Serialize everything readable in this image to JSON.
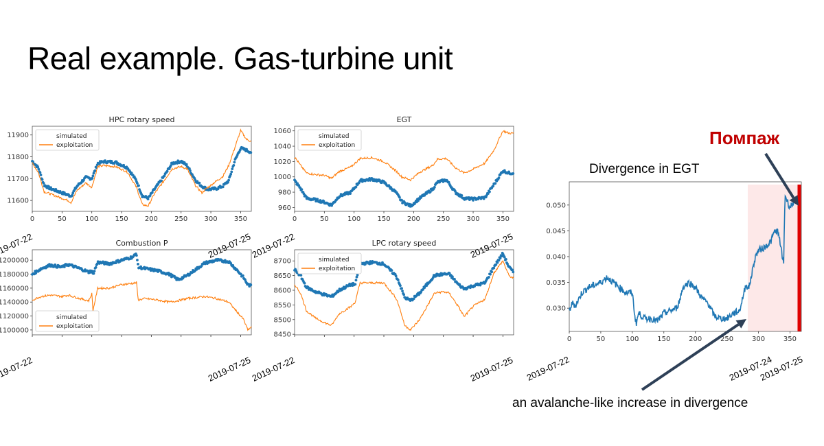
{
  "slide": {
    "title": "Real example. Gas-turbine unit",
    "divergence_title": "Divergence in  EGT",
    "surge_label": "Помпаж",
    "annotation": "an avalanche-like increase in divergence"
  },
  "legend": {
    "simulated": "simulated",
    "exploitation": "exploitation"
  },
  "colors": {
    "simulated": "#1f77b4",
    "exploitation": "#ff7f0e",
    "surge": "#e00000",
    "highlight": "#fde8e8",
    "arrow": "#2e4057",
    "surge_text": "#c00000"
  },
  "chart_data": [
    {
      "type": "line",
      "title": "HPC rotary speed",
      "x_ticks": [
        0,
        50,
        100,
        150,
        200,
        250,
        300,
        350
      ],
      "y_ticks": [
        11600,
        11700,
        11800,
        11900
      ],
      "ylim": [
        11550,
        11940
      ],
      "xlim": [
        0,
        368
      ],
      "date_labels": [
        "2019-07-22",
        "2019-07-25"
      ],
      "legend_position": "upper left",
      "x": [
        0,
        10,
        20,
        30,
        40,
        50,
        60,
        65,
        75,
        90,
        100,
        110,
        120,
        140,
        160,
        175,
        185,
        195,
        205,
        220,
        235,
        250,
        260,
        275,
        285,
        295,
        310,
        320,
        330,
        340,
        350,
        360,
        368
      ],
      "series": [
        {
          "name": "simulated",
          "style": "dots",
          "values": [
            11780,
            11750,
            11670,
            11655,
            11645,
            11635,
            11625,
            11620,
            11665,
            11705,
            11700,
            11770,
            11778,
            11775,
            11750,
            11690,
            11620,
            11610,
            11650,
            11705,
            11770,
            11780,
            11760,
            11690,
            11665,
            11650,
            11655,
            11665,
            11690,
            11780,
            11840,
            11830,
            11820
          ]
        },
        {
          "name": "exploitation",
          "style": "line",
          "values": [
            11770,
            11730,
            11640,
            11630,
            11620,
            11610,
            11600,
            11590,
            11645,
            11680,
            11660,
            11755,
            11760,
            11755,
            11730,
            11660,
            11580,
            11575,
            11630,
            11685,
            11745,
            11755,
            11745,
            11665,
            11635,
            11660,
            11690,
            11710,
            11760,
            11840,
            11920,
            11880,
            11870
          ]
        }
      ]
    },
    {
      "type": "line",
      "title": "EGT",
      "x_ticks": [
        0,
        50,
        100,
        150,
        200,
        250,
        300,
        350
      ],
      "y_ticks": [
        960,
        980,
        1000,
        1020,
        1040,
        1060
      ],
      "ylim": [
        955,
        1066
      ],
      "xlim": [
        0,
        368
      ],
      "date_labels": [
        "2019-07-22",
        "2019-07-25"
      ],
      "legend_position": "upper left",
      "x": [
        0,
        10,
        20,
        35,
        50,
        62,
        75,
        95,
        110,
        130,
        150,
        170,
        180,
        195,
        210,
        232,
        240,
        255,
        270,
        285,
        300,
        320,
        335,
        350,
        360,
        368
      ],
      "series": [
        {
          "name": "simulated",
          "style": "dots",
          "values": [
            995,
            985,
            972,
            970,
            967,
            963,
            975,
            980,
            995,
            997,
            993,
            980,
            968,
            962,
            972,
            984,
            993,
            996,
            980,
            972,
            971,
            973,
            990,
            1008,
            1005,
            1005
          ]
        },
        {
          "name": "exploitation",
          "style": "line",
          "values": [
            1026,
            1015,
            1005,
            1003,
            1002,
            998,
            1007,
            1013,
            1024,
            1025,
            1020,
            1008,
            1000,
            996,
            1006,
            1015,
            1023,
            1024,
            1012,
            1005,
            1010,
            1018,
            1035,
            1060,
            1057,
            1057
          ]
        }
      ]
    },
    {
      "type": "line",
      "title": "Combustion P",
      "x_ticks": [
        0,
        50,
        100,
        150,
        200,
        250,
        300,
        350
      ],
      "y_ticks": [
        1100000,
        1120000,
        1140000,
        1160000,
        1180000,
        1200000
      ],
      "ylim": [
        1093000,
        1215000
      ],
      "xlim": [
        0,
        368
      ],
      "date_labels": [
        "2019-07-22",
        "2019-07-25"
      ],
      "legend_position": "lower left",
      "x": [
        0,
        15,
        30,
        50,
        60,
        80,
        95,
        100,
        102,
        110,
        130,
        150,
        170,
        175,
        178,
        190,
        210,
        230,
        245,
        260,
        290,
        310,
        330,
        345,
        355,
        362,
        368
      ],
      "series": [
        {
          "name": "simulated",
          "style": "dots",
          "values": [
            1180000,
            1188000,
            1193000,
            1190000,
            1194000,
            1188000,
            1183000,
            1185000,
            1180000,
            1197000,
            1195000,
            1200000,
            1205000,
            1210000,
            1190000,
            1188000,
            1185000,
            1180000,
            1172000,
            1178000,
            1196000,
            1200000,
            1198000,
            1185000,
            1175000,
            1165000,
            1163000
          ]
        },
        {
          "name": "exploitation",
          "style": "line",
          "values": [
            1143000,
            1148000,
            1150000,
            1148000,
            1150000,
            1145000,
            1142000,
            1152000,
            1128000,
            1160000,
            1160000,
            1165000,
            1167000,
            1168000,
            1143000,
            1145000,
            1143000,
            1140000,
            1142000,
            1145000,
            1148000,
            1145000,
            1140000,
            1125000,
            1115000,
            1100000,
            1104000
          ]
        }
      ]
    },
    {
      "type": "line",
      "title": "LPC rotary speed",
      "x_ticks": [
        0,
        50,
        100,
        150,
        200,
        250,
        300,
        350
      ],
      "y_ticks": [
        8450,
        8500,
        8550,
        8600,
        8650,
        8700
      ],
      "ylim": [
        8448,
        8738
      ],
      "xlim": [
        0,
        368
      ],
      "date_labels": [
        "2019-07-22",
        "2019-07-25"
      ],
      "legend_position": "upper left",
      "x": [
        0,
        10,
        20,
        35,
        50,
        62,
        75,
        95,
        102,
        110,
        130,
        150,
        170,
        175,
        185,
        195,
        210,
        235,
        250,
        260,
        275,
        285,
        300,
        320,
        335,
        350,
        360,
        368
      ],
      "series": [
        {
          "name": "simulated",
          "style": "dots",
          "values": [
            8670,
            8650,
            8610,
            8595,
            8585,
            8578,
            8600,
            8620,
            8620,
            8690,
            8695,
            8690,
            8650,
            8630,
            8575,
            8565,
            8590,
            8650,
            8655,
            8655,
            8620,
            8605,
            8615,
            8625,
            8680,
            8725,
            8680,
            8660
          ]
        },
        {
          "name": "exploitation",
          "style": "line",
          "values": [
            8620,
            8590,
            8530,
            8505,
            8490,
            8480,
            8520,
            8545,
            8560,
            8625,
            8625,
            8625,
            8575,
            8550,
            8480,
            8465,
            8500,
            8590,
            8595,
            8590,
            8545,
            8510,
            8545,
            8570,
            8660,
            8700,
            8650,
            8640
          ]
        }
      ]
    },
    {
      "type": "line",
      "title": "Divergence in  EGT",
      "x_ticks": [
        0,
        50,
        100,
        150,
        200,
        250,
        300,
        350
      ],
      "y_ticks": [
        0.03,
        0.035,
        0.04,
        0.045,
        0.05
      ],
      "ylim": [
        0.0255,
        0.0545
      ],
      "xlim": [
        0,
        368
      ],
      "date_labels": [
        "2019-07-22",
        "2019-07-24",
        "2019-07-25"
      ],
      "highlight_region": [
        283,
        368
      ],
      "surge_marker_x": 362,
      "x": [
        0,
        5,
        10,
        20,
        30,
        40,
        50,
        60,
        70,
        80,
        90,
        100,
        104,
        106,
        110,
        120,
        130,
        140,
        150,
        160,
        170,
        175,
        180,
        190,
        200,
        210,
        220,
        230,
        240,
        250,
        260,
        270,
        280,
        285,
        290,
        295,
        300,
        310,
        320,
        325,
        330,
        335,
        338,
        340,
        342,
        345,
        350,
        355,
        360
      ],
      "series": [
        {
          "name": "divergence",
          "style": "line",
          "values": [
            0.0295,
            0.031,
            0.0305,
            0.033,
            0.034,
            0.0345,
            0.035,
            0.036,
            0.035,
            0.034,
            0.033,
            0.033,
            0.0285,
            0.027,
            0.029,
            0.028,
            0.028,
            0.0275,
            0.029,
            0.0295,
            0.03,
            0.0315,
            0.034,
            0.035,
            0.034,
            0.032,
            0.031,
            0.0285,
            0.028,
            0.028,
            0.029,
            0.0295,
            0.0345,
            0.034,
            0.037,
            0.04,
            0.0412,
            0.0418,
            0.043,
            0.0448,
            0.045,
            0.0425,
            0.0395,
            0.039,
            0.052,
            0.051,
            0.0495,
            0.0505,
            0.0508
          ]
        }
      ]
    }
  ]
}
